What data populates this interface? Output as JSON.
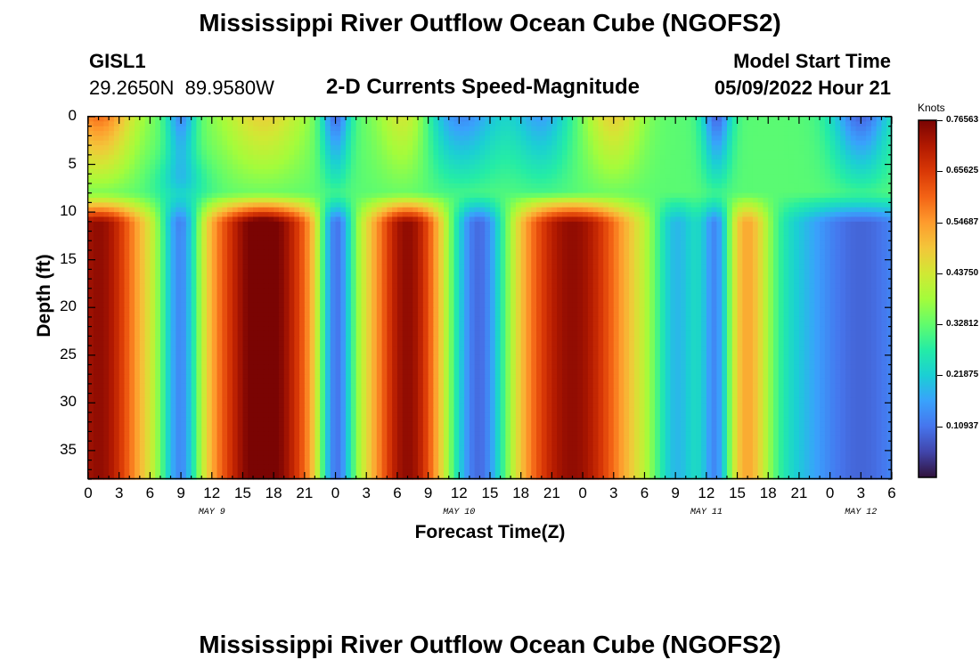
{
  "title": "Mississippi River Outflow Ocean Cube (NGOFS2)",
  "title_repeat": "Mississippi River Outflow Ocean Cube (NGOFS2)",
  "station": {
    "id": "GISL1",
    "coords": "29.2650N  89.9580W"
  },
  "subtitle": "2-D Currents Speed-Magnitude",
  "model": {
    "label": "Model Start Time",
    "value": "05/09/2022 Hour 21"
  },
  "chart_data": {
    "type": "heatmap",
    "title": "2-D Currents Speed-Magnitude",
    "xlabel": "Forecast Time(Z)",
    "ylabel": "Depth (ft)",
    "ylim": [
      38,
      0
    ],
    "xlim_hours": [
      0,
      78
    ],
    "y_ticks": [
      "0",
      "5",
      "10",
      "15",
      "20",
      "25",
      "30",
      "35"
    ],
    "x_ticks": [
      "0",
      "3",
      "6",
      "9",
      "12",
      "15",
      "18",
      "21",
      "0",
      "3",
      "6",
      "9",
      "12",
      "15",
      "18",
      "21",
      "0",
      "3",
      "6",
      "9",
      "12",
      "15",
      "18",
      "21",
      "0",
      "3",
      "6"
    ],
    "date_labels": [
      {
        "label": "MAY 9",
        "hour": 12
      },
      {
        "label": "MAY 10",
        "hour": 36
      },
      {
        "label": "MAY 11",
        "hour": 60
      },
      {
        "label": "MAY 12",
        "hour": 75
      }
    ],
    "colorbar": {
      "unit": "Knots",
      "min": 0.0,
      "max": 0.76563,
      "tick_labels": [
        "0.76563",
        "0.65625",
        "0.54687",
        "0.43750",
        "0.32812",
        "0.21875",
        "0.10937"
      ]
    },
    "minima_peak_hours": [
      9,
      24,
      38,
      57,
      61,
      75
    ],
    "maxima_peak_hours": [
      1,
      17,
      31,
      47,
      64
    ],
    "colors": [
      "#30123b",
      "#4145ab",
      "#4675ed",
      "#39a2fc",
      "#1bcfd4",
      "#24eca6",
      "#61fc6c",
      "#a4fc3b",
      "#d1e834",
      "#f3c63a",
      "#fe9b2d",
      "#f36315",
      "#d93806",
      "#b11901",
      "#7a0403"
    ]
  }
}
